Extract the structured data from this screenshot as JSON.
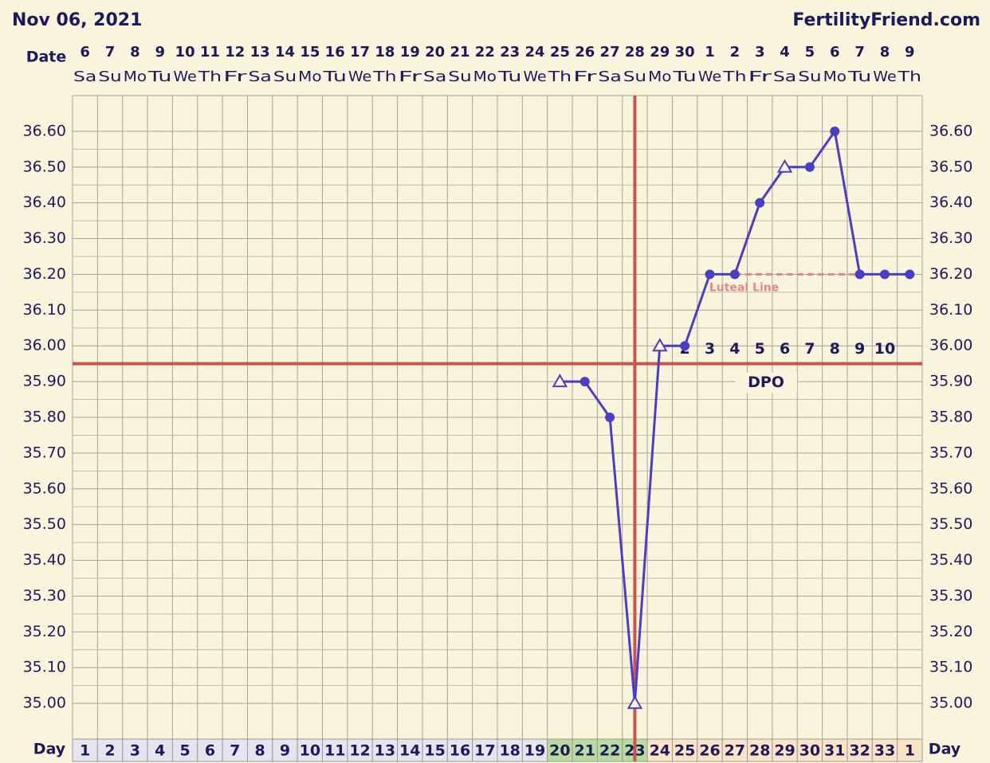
{
  "chart_data": {
    "type": "line",
    "title": "Nov 06, 2021",
    "source": "FertilityFriend.com",
    "date_label": "Date",
    "day_label": "Day",
    "dates": [
      6,
      7,
      8,
      9,
      10,
      11,
      12,
      13,
      14,
      15,
      16,
      17,
      18,
      19,
      20,
      21,
      22,
      23,
      24,
      25,
      26,
      27,
      28,
      29,
      30,
      1,
      2,
      3,
      4,
      5,
      6,
      7,
      8,
      9
    ],
    "weekdays": [
      "Sa",
      "Su",
      "Mo",
      "Tu",
      "We",
      "Th",
      "Fr",
      "Sa",
      "Su",
      "Mo",
      "Tu",
      "We",
      "Th",
      "Fr",
      "Sa",
      "Su",
      "Mo",
      "Tu",
      "We",
      "Th",
      "Fr",
      "Sa",
      "Su",
      "Mo",
      "Tu",
      "We",
      "Th",
      "Fr",
      "Sa",
      "Su",
      "Mo",
      "Tu",
      "We",
      "Th"
    ],
    "cycle_days": [
      1,
      2,
      3,
      4,
      5,
      6,
      7,
      8,
      9,
      10,
      11,
      12,
      13,
      14,
      15,
      16,
      17,
      18,
      19,
      20,
      21,
      22,
      23,
      24,
      25,
      26,
      27,
      28,
      29,
      30,
      31,
      32,
      33,
      1
    ],
    "values": [
      null,
      null,
      null,
      null,
      null,
      null,
      null,
      null,
      null,
      null,
      null,
      null,
      null,
      null,
      null,
      null,
      null,
      null,
      null,
      35.9,
      35.9,
      35.8,
      35.0,
      36.0,
      36.0,
      36.2,
      36.2,
      36.4,
      36.5,
      36.5,
      36.6,
      36.2,
      36.2,
      36.2
    ],
    "point_styles": [
      null,
      null,
      null,
      null,
      null,
      null,
      null,
      null,
      null,
      null,
      null,
      null,
      null,
      null,
      null,
      null,
      null,
      null,
      null,
      "triangle",
      "circle",
      "circle",
      "triangle",
      "triangle",
      "circle",
      "circle",
      "circle",
      "circle",
      "triangle",
      "circle",
      "circle",
      "circle",
      "circle",
      "circle"
    ],
    "color": "#4a3fc2",
    "ylim": [
      34.9,
      36.7
    ],
    "yticks": [
      {
        "value": 35.0,
        "label": "35.00"
      },
      {
        "value": 35.1,
        "label": "35.10"
      },
      {
        "value": 35.2,
        "label": "35.20"
      },
      {
        "value": 35.3,
        "label": "35.30"
      },
      {
        "value": 35.4,
        "label": "35.40"
      },
      {
        "value": 35.5,
        "label": "35.50"
      },
      {
        "value": 35.6,
        "label": "35.60"
      },
      {
        "value": 35.7,
        "label": "35.70"
      },
      {
        "value": 35.8,
        "label": "35.80"
      },
      {
        "value": 35.9,
        "label": "35.90"
      },
      {
        "value": 36.0,
        "label": "36.00"
      },
      {
        "value": 36.1,
        "label": "36.10"
      },
      {
        "value": 36.2,
        "label": "36.20"
      },
      {
        "value": 36.3,
        "label": "36.30"
      },
      {
        "value": 36.4,
        "label": "36.40"
      },
      {
        "value": 36.5,
        "label": "36.50"
      },
      {
        "value": 36.6,
        "label": "36.60"
      }
    ],
    "grid": true,
    "coverline": 35.95,
    "marker_line_color": "#c8564a",
    "ovulation_day": 23,
    "fertile_days": [
      20,
      23
    ],
    "luteal_line": {
      "label": "Luteal Line",
      "value": 36.2,
      "from_day": 27,
      "color": "#e98585"
    },
    "dpo_label": "DPO",
    "dpo": [
      2,
      3,
      4,
      5,
      6,
      7,
      8,
      9,
      10
    ]
  }
}
